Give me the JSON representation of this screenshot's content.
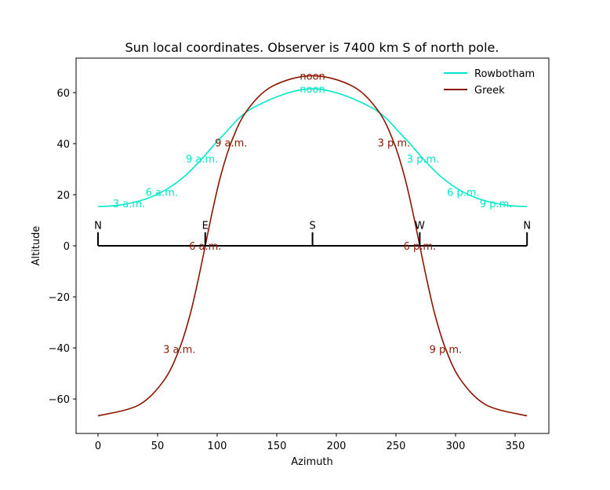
{
  "chart_data": {
    "type": "line",
    "title": "Sun local coordinates. Observer is 7400 km S of north pole.",
    "xlabel": "Azimuth",
    "ylabel": "Altitude",
    "xlim": [
      -18.4,
      378.3
    ],
    "ylim": [
      -73.5,
      73.5
    ],
    "xticks": [
      0,
      50,
      100,
      150,
      200,
      250,
      300,
      350
    ],
    "yticks": [
      -60,
      -40,
      -20,
      0,
      20,
      40,
      60
    ],
    "ytick_labels": [
      "−60",
      "−40",
      "−20",
      "0",
      "20",
      "40",
      "60"
    ],
    "grid": false,
    "legend_position": "top-right",
    "hour_labels": {
      "3": "3 a.m.",
      "6": "6 a.m.",
      "9": "9 a.m.",
      "12": "noon",
      "15": "3 p.m.",
      "18": "6 p.m.",
      "21": "9 p.m."
    },
    "series": [
      {
        "name": "Rowbotham",
        "color": "#00e8c8",
        "hours": [
          0,
          1,
          2,
          3,
          4,
          5,
          6,
          7,
          8,
          9,
          10,
          11,
          12,
          13,
          14,
          15,
          16,
          17,
          18,
          19,
          20,
          21,
          22,
          23,
          24
        ],
        "azimuth": [
          0,
          8.6,
          17.3,
          26.0,
          34.9,
          44.0,
          53.5,
          63.5,
          74.5,
          87.3,
          104.1,
          131.1,
          180,
          228.9,
          255.9,
          272.7,
          285.5,
          296.5,
          306.5,
          316.0,
          325.1,
          334.0,
          342.7,
          351.4,
          360
        ],
        "altitude": [
          15.4,
          15.5,
          15.9,
          16.6,
          17.6,
          19.0,
          21.05,
          23.9,
          28.0,
          34.1,
          42.9,
          54.3,
          61.5,
          54.3,
          42.9,
          34.1,
          28.0,
          23.9,
          21.05,
          19.0,
          17.6,
          16.6,
          15.9,
          15.5,
          15.4
        ]
      },
      {
        "name": "Greek",
        "color": "#8b1500",
        "hours": [
          0,
          1,
          2,
          3,
          4,
          5,
          6,
          7,
          8,
          9,
          10,
          11,
          12,
          13,
          14,
          15,
          16,
          17,
          18,
          19,
          20,
          21,
          22,
          23,
          24
        ],
        "azimuth": [
          0,
          34.0,
          55.5,
          68.3,
          77.1,
          83.9,
          90,
          96.1,
          102.9,
          111.7,
          124.5,
          146.0,
          180,
          214.0,
          235.5,
          248.3,
          257.1,
          263.9,
          270,
          276.1,
          282.9,
          291.7,
          304.5,
          326.0,
          360
        ],
        "altitude": [
          -66.6,
          -62.4,
          -52.6,
          -40.4,
          -27.3,
          -13.7,
          0,
          13.7,
          27.3,
          40.4,
          52.6,
          62.4,
          66.6,
          62.4,
          52.6,
          40.4,
          27.3,
          13.7,
          0,
          -13.7,
          -27.3,
          -40.4,
          -52.6,
          -62.4,
          -66.6
        ]
      }
    ],
    "compass": {
      "azimuths": [
        0,
        90,
        180,
        270,
        360
      ],
      "labels": [
        "N",
        "E",
        "S",
        "W",
        "N"
      ],
      "color": "#000000"
    }
  }
}
